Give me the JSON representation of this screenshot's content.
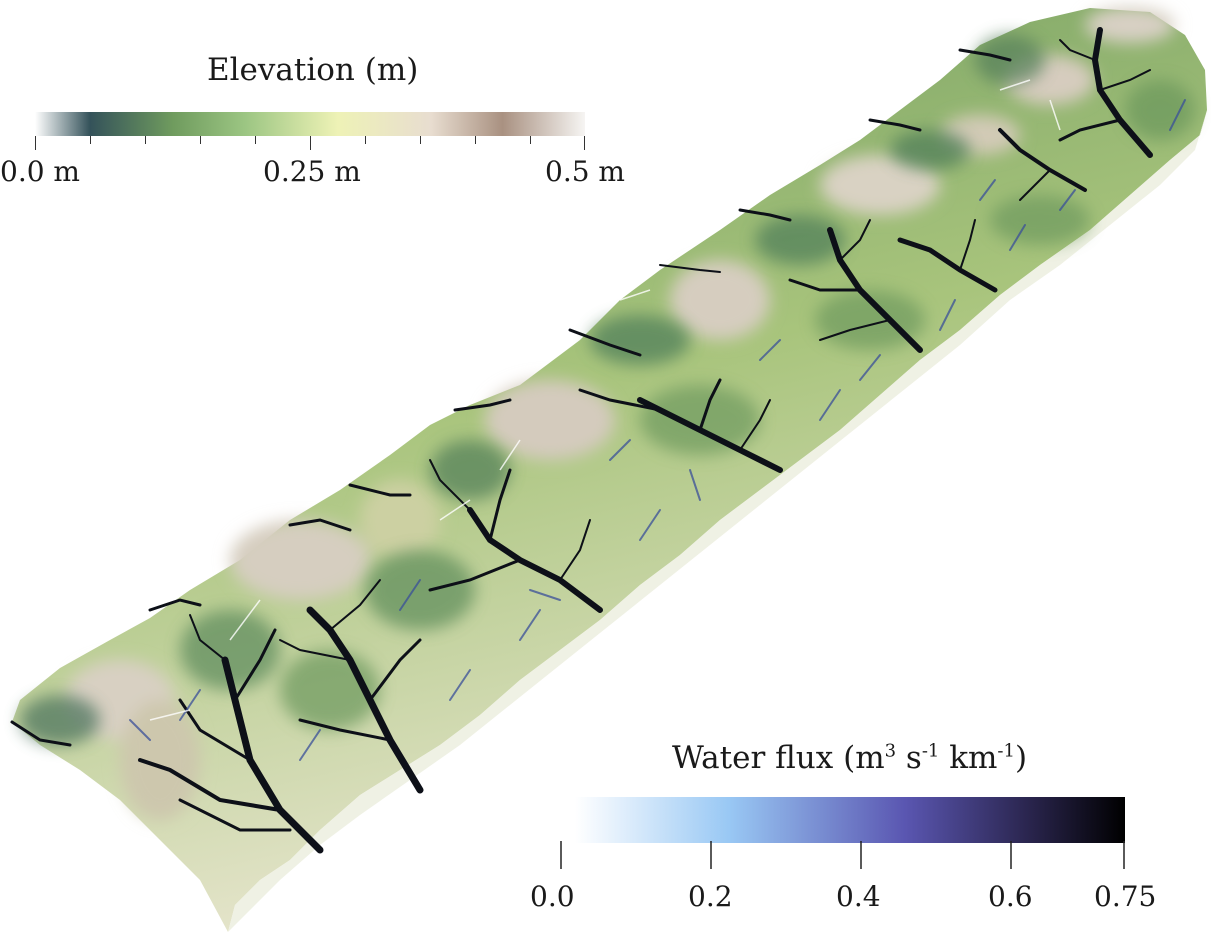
{
  "elevation_legend": {
    "title": "Elevation (m)",
    "min_label": "0.0 m",
    "mid_label": "0.25 m",
    "max_label": "0.5 m",
    "range": [
      0.0,
      0.5
    ],
    "unit": "m",
    "colors": [
      "#ffffff",
      "#34525a",
      "#6f9b5e",
      "#9bc582",
      "#eef2b6",
      "#e8ddd0",
      "#a99181",
      "#f6f5f3"
    ]
  },
  "water_flux_legend": {
    "title_base": "Water flux (m",
    "title_exp1": "3",
    "title_mid1": " s",
    "title_exp2": "-1",
    "title_mid2": " km",
    "title_exp3": "-1",
    "title_end": ")",
    "ticks": [
      "0.0",
      "0.2",
      "0.4",
      "0.6",
      "0.75"
    ],
    "range": [
      0.0,
      0.75
    ],
    "colors": [
      "#ffffff",
      "#99c8f4",
      "#5a56b1",
      "#2b2650",
      "#000000"
    ]
  },
  "scene": {
    "description_colors": {
      "low": "#3e6a52",
      "mid": "#8fb070",
      "high": "#e4dccd",
      "channel": "#0c0f18"
    }
  }
}
